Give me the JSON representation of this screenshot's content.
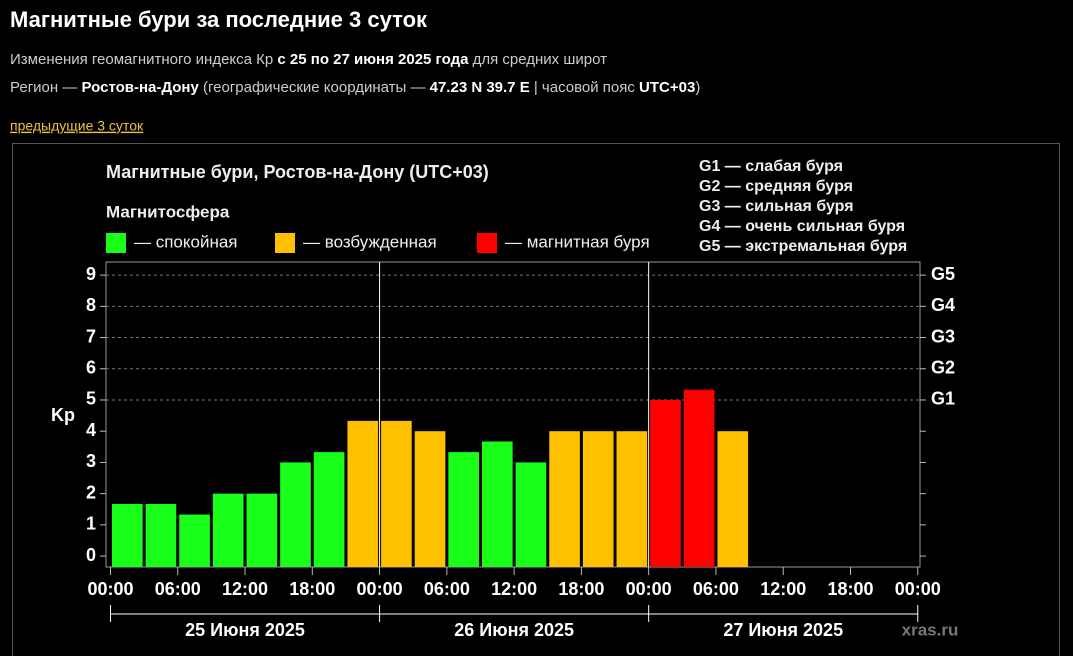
{
  "header": {
    "title": "Магнитные бури за последние 3 суток",
    "line1": [
      {
        "text": "Изменения геомагнитного индекса Кр ",
        "bold": false
      },
      {
        "text": "с 25 по 27 июня 2025 года",
        "bold": true
      },
      {
        "text": " для средних широт",
        "bold": false
      }
    ],
    "line2": [
      {
        "text": "Регион — ",
        "bold": false
      },
      {
        "text": "Ростов-на-Дону",
        "bold": true
      },
      {
        "text": " (географические координаты — ",
        "bold": false
      },
      {
        "text": "47.23 N 39.7 E",
        "bold": true
      },
      {
        "text": " | часовой пояс ",
        "bold": false
      },
      {
        "text": "UTC+03",
        "bold": true
      },
      {
        "text": ")",
        "bold": false
      }
    ],
    "link": "предыдущие 3 суток"
  },
  "chart_data": {
    "type": "histogram",
    "title": "Магнитные бури, Ростов-на-Дону (UTC+03)",
    "legend_title": "Магнитосфера",
    "legend": [
      {
        "label": "— спокойная",
        "color": "#1aff1a"
      },
      {
        "label": "— возбужденная",
        "color": "#ffc000"
      },
      {
        "label": "— магнитная буря",
        "color": "#ff0000"
      }
    ],
    "scale_legend": [
      "G1 — слабая буря",
      "G2 — средняя буря",
      "G3 — сильная буря",
      "G4 — очень сильная буря",
      "G5 — экстремальная буря"
    ],
    "ylabel": "Kp",
    "bins": [
      0,
      3,
      6,
      9,
      12,
      15,
      18,
      21,
      24,
      27,
      30,
      33,
      36,
      39,
      42,
      45,
      48,
      51,
      54,
      57
    ],
    "values": [
      1.67,
      1.67,
      1.33,
      2,
      2,
      3,
      3.33,
      4.33,
      4.33,
      4,
      3.33,
      3.67,
      3,
      4,
      4,
      4,
      5,
      5.33,
      4
    ],
    "colors": [
      "#1aff1a",
      "#1aff1a",
      "#1aff1a",
      "#1aff1a",
      "#1aff1a",
      "#1aff1a",
      "#1aff1a",
      "#ffc000",
      "#ffc000",
      "#ffc000",
      "#1aff1a",
      "#1aff1a",
      "#1aff1a",
      "#ffc000",
      "#ffc000",
      "#ffc000",
      "#ff0000",
      "#ff0000",
      "#ffc000"
    ],
    "xlim": [
      -0.4,
      72.2
    ],
    "xticks": [
      {
        "value": 0,
        "label": "00:00"
      },
      {
        "value": 6,
        "label": "06:00"
      },
      {
        "value": 12,
        "label": "12:00"
      },
      {
        "value": 18,
        "label": "18:00"
      },
      {
        "value": 24,
        "label": "00:00"
      },
      {
        "value": 30,
        "label": "06:00"
      },
      {
        "value": 36,
        "label": "12:00"
      },
      {
        "value": 42,
        "label": "18:00"
      },
      {
        "value": 48,
        "label": "00:00"
      },
      {
        "value": 54,
        "label": "06:00"
      },
      {
        "value": 60,
        "label": "12:00"
      },
      {
        "value": 66,
        "label": "18:00"
      },
      {
        "value": 72,
        "label": "00:00"
      }
    ],
    "ylim": [
      -0.35,
      9.42
    ],
    "yticks": [
      0,
      1,
      2,
      3,
      4,
      5,
      6,
      7,
      8,
      9
    ],
    "y2lim": [
      -0.35,
      9.42
    ],
    "y2ticks": [
      {
        "value": 5,
        "label": "G1"
      },
      {
        "value": 6,
        "label": "G2"
      },
      {
        "value": 7,
        "label": "G3"
      },
      {
        "value": 8,
        "label": "G4"
      },
      {
        "value": 9,
        "label": "G5"
      }
    ],
    "grid": true,
    "day_edges": [
      0,
      24,
      48,
      72
    ],
    "days": [
      "25 Июня 2025",
      "26 Июня 2025",
      "27 Июня 2025"
    ],
    "watermark": "xras.ru"
  }
}
